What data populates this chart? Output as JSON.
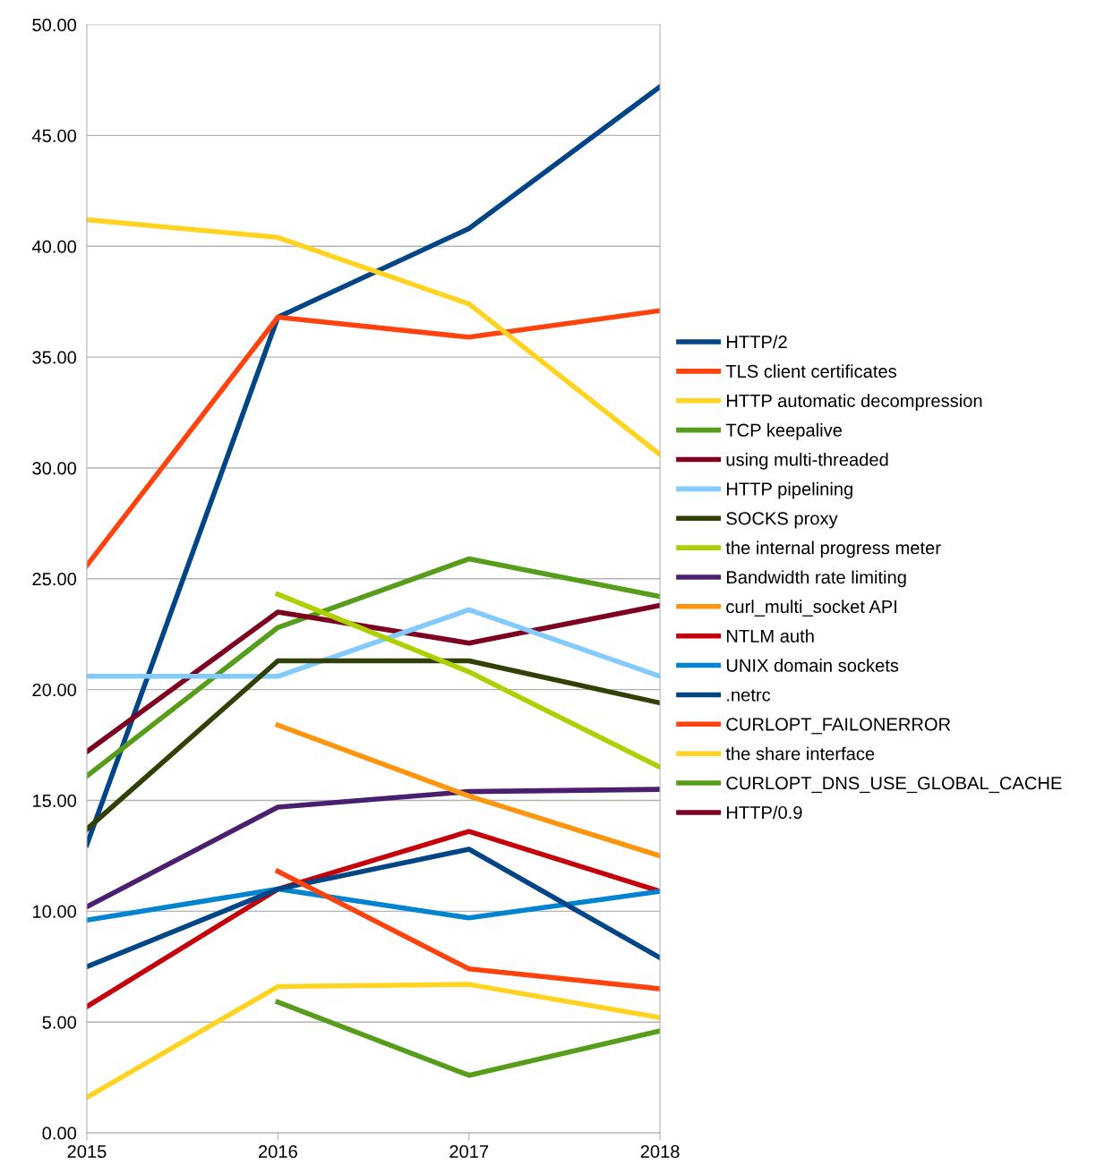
{
  "chart_data": {
    "type": "line",
    "categories": [
      "2015",
      "2016",
      "2017",
      "2018"
    ],
    "ylim": [
      0,
      50
    ],
    "yticks": [
      {
        "value": 0,
        "label": "0.00"
      },
      {
        "value": 5,
        "label": "5.00"
      },
      {
        "value": 10,
        "label": "10.00"
      },
      {
        "value": 15,
        "label": "15.00"
      },
      {
        "value": 20,
        "label": "20.00"
      },
      {
        "value": 25,
        "label": "25.00"
      },
      {
        "value": 30,
        "label": "30.00"
      },
      {
        "value": 35,
        "label": "35.00"
      },
      {
        "value": 40,
        "label": "40.00"
      },
      {
        "value": 45,
        "label": "45.00"
      },
      {
        "value": 50,
        "label": "50.00"
      }
    ],
    "grid": "y",
    "legend": "right",
    "marker": "none",
    "line_style": "solid",
    "series": [
      {
        "name": "HTTP/2",
        "color": "#004586",
        "values": [
          13.0,
          36.8,
          40.8,
          47.2
        ]
      },
      {
        "name": "TLS client certificates",
        "color": "#ff420e",
        "values": [
          25.6,
          36.8,
          35.9,
          37.1
        ]
      },
      {
        "name": "HTTP automatic decompression",
        "color": "#ffd320",
        "values": [
          41.2,
          40.4,
          37.4,
          30.6
        ]
      },
      {
        "name": "TCP keepalive",
        "color": "#579d1c",
        "values": [
          16.1,
          22.8,
          25.9,
          24.2
        ]
      },
      {
        "name": "using multi-threaded",
        "color": "#7e0021",
        "values": [
          17.2,
          23.5,
          22.1,
          23.8
        ]
      },
      {
        "name": "HTTP pipelining",
        "color": "#83caff",
        "values": [
          20.6,
          20.6,
          23.6,
          20.6
        ]
      },
      {
        "name": "SOCKS proxy",
        "color": "#314004",
        "values": [
          13.7,
          21.3,
          21.3,
          19.4
        ]
      },
      {
        "name": "the internal progress meter",
        "color": "#aecf00",
        "values": [
          null,
          24.3,
          20.8,
          16.5
        ]
      },
      {
        "name": "Bandwidth rate limiting",
        "color": "#4b1f6f",
        "values": [
          10.2,
          14.7,
          15.4,
          15.5
        ]
      },
      {
        "name": "curl_multi_socket API",
        "color": "#ff950e",
        "values": [
          null,
          18.4,
          15.2,
          12.5
        ]
      },
      {
        "name": "NTLM auth",
        "color": "#c5000b",
        "values": [
          5.7,
          11.0,
          13.6,
          10.9
        ]
      },
      {
        "name": "UNIX domain sockets",
        "color": "#0084d1",
        "values": [
          9.6,
          11.0,
          9.7,
          10.9
        ]
      },
      {
        "name": ".netrc",
        "color": "#004586",
        "values": [
          7.5,
          11.0,
          12.8,
          7.9
        ]
      },
      {
        "name": "CURLOPT_FAILONERROR",
        "color": "#ff420e",
        "values": [
          null,
          11.8,
          7.4,
          6.5
        ]
      },
      {
        "name": "the share interface",
        "color": "#ffd320",
        "values": [
          1.6,
          6.6,
          6.7,
          5.2
        ]
      },
      {
        "name": "CURLOPT_DNS_USE_GLOBAL_CACHE",
        "color": "#579d1c",
        "values": [
          null,
          5.9,
          2.6,
          4.6
        ]
      },
      {
        "name": "HTTP/0.9",
        "color": "#7e0021",
        "values": [
          null,
          null,
          null,
          null
        ]
      }
    ]
  }
}
